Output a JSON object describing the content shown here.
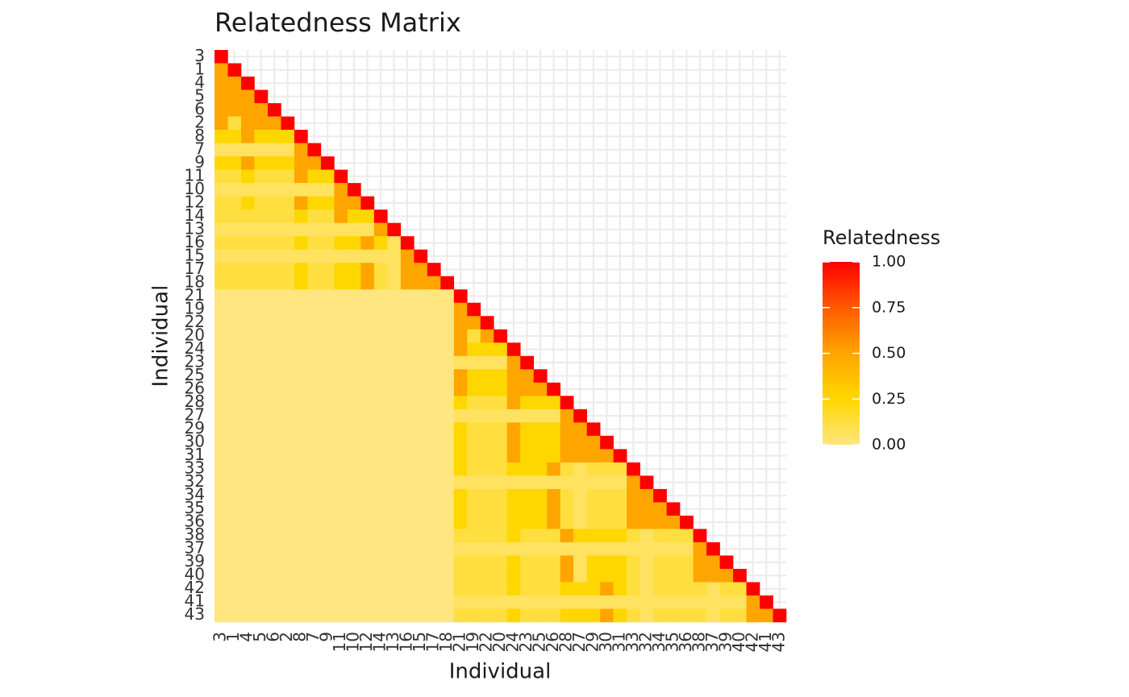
{
  "chart_data": {
    "type": "heatmap",
    "title": "Relatedness Matrix",
    "x_label": "Individual",
    "y_label": "Individual",
    "categories": [
      "3",
      "1",
      "4",
      "5",
      "6",
      "2",
      "8",
      "7",
      "9",
      "11",
      "10",
      "12",
      "14",
      "13",
      "16",
      "15",
      "17",
      "18",
      "21",
      "19",
      "22",
      "20",
      "24",
      "23",
      "25",
      "26",
      "28",
      "27",
      "29",
      "30",
      "31",
      "33",
      "32",
      "34",
      "35",
      "36",
      "38",
      "37",
      "39",
      "40",
      "42",
      "41",
      "43"
    ],
    "values": [
      [
        1
      ],
      [
        0.5,
        1
      ],
      [
        0.5,
        0.5,
        1
      ],
      [
        0.5,
        0.5,
        0.5,
        1
      ],
      [
        0.5,
        0.5,
        0.5,
        0.5,
        1
      ],
      [
        0.5,
        0.125,
        0.5,
        0.5,
        0.5,
        1
      ],
      [
        0.25,
        0.25,
        0.5,
        0.25,
        0.25,
        0.25,
        1
      ],
      [
        0.0625,
        0.0625,
        0.0625,
        0.0625,
        0.0625,
        0.0625,
        0.5,
        1
      ],
      [
        0.25,
        0.25,
        0.5,
        0.25,
        0.25,
        0.25,
        0.5,
        0.5,
        1
      ],
      [
        0.125,
        0.125,
        0.25,
        0.125,
        0.125,
        0.125,
        0.5,
        0.25,
        0.25,
        1
      ],
      [
        0.0625,
        0.0625,
        0.0625,
        0.0625,
        0.0625,
        0.0625,
        0.0625,
        0.0625,
        0.0625,
        0.5,
        1
      ],
      [
        0.125,
        0.125,
        0.25,
        0.125,
        0.125,
        0.125,
        0.5,
        0.25,
        0.25,
        0.5,
        0.5,
        1
      ],
      [
        0.125,
        0.125,
        0.125,
        0.125,
        0.125,
        0.125,
        0.25,
        0.125,
        0.125,
        0.5,
        0.25,
        0.25,
        1
      ],
      [
        0.0625,
        0.0625,
        0.0625,
        0.0625,
        0.0625,
        0.0625,
        0.0625,
        0.0625,
        0.0625,
        0.0625,
        0.0625,
        0.0625,
        0.5,
        1
      ],
      [
        0.125,
        0.125,
        0.125,
        0.125,
        0.125,
        0.125,
        0.25,
        0.125,
        0.125,
        0.25,
        0.25,
        0.5,
        0.25,
        0.0625,
        1
      ],
      [
        0.0625,
        0.0625,
        0.0625,
        0.0625,
        0.0625,
        0.0625,
        0.0625,
        0.0625,
        0.0625,
        0.0625,
        0.0625,
        0.0625,
        0.0625,
        0.0625,
        0.5,
        1
      ],
      [
        0.125,
        0.125,
        0.125,
        0.125,
        0.125,
        0.125,
        0.25,
        0.125,
        0.125,
        0.25,
        0.25,
        0.5,
        0.125,
        0.0625,
        0.5,
        0.5,
        1
      ],
      [
        0.125,
        0.125,
        0.125,
        0.125,
        0.125,
        0.125,
        0.25,
        0.125,
        0.125,
        0.25,
        0.25,
        0.5,
        0.125,
        0.0625,
        0.5,
        0.5,
        0.5,
        1
      ],
      [
        0,
        0,
        0,
        0,
        0,
        0,
        0,
        0,
        0,
        0,
        0,
        0,
        0,
        0,
        0,
        0,
        0,
        0,
        1
      ],
      [
        0,
        0,
        0,
        0,
        0,
        0,
        0,
        0,
        0,
        0,
        0,
        0,
        0,
        0,
        0,
        0,
        0,
        0,
        0.5,
        1
      ],
      [
        0,
        0,
        0,
        0,
        0,
        0,
        0,
        0,
        0,
        0,
        0,
        0,
        0,
        0,
        0,
        0,
        0,
        0,
        0.5,
        0.5,
        1
      ],
      [
        0,
        0,
        0,
        0,
        0,
        0,
        0,
        0,
        0,
        0,
        0,
        0,
        0,
        0,
        0,
        0,
        0,
        0,
        0.5,
        0.125,
        0.5,
        1
      ],
      [
        0,
        0,
        0,
        0,
        0,
        0,
        0,
        0,
        0,
        0,
        0,
        0,
        0,
        0,
        0,
        0,
        0,
        0,
        0.5,
        0.25,
        0.25,
        0.25,
        1
      ],
      [
        0,
        0,
        0,
        0,
        0,
        0,
        0,
        0,
        0,
        0,
        0,
        0,
        0,
        0,
        0,
        0,
        0,
        0,
        0.0625,
        0.0625,
        0.0625,
        0.0625,
        0.5,
        1
      ],
      [
        0,
        0,
        0,
        0,
        0,
        0,
        0,
        0,
        0,
        0,
        0,
        0,
        0,
        0,
        0,
        0,
        0,
        0,
        0.5,
        0.25,
        0.25,
        0.25,
        0.5,
        0.5,
        1
      ],
      [
        0,
        0,
        0,
        0,
        0,
        0,
        0,
        0,
        0,
        0,
        0,
        0,
        0,
        0,
        0,
        0,
        0,
        0,
        0.5,
        0.25,
        0.25,
        0.25,
        0.5,
        0.5,
        0.5,
        1
      ],
      [
        0,
        0,
        0,
        0,
        0,
        0,
        0,
        0,
        0,
        0,
        0,
        0,
        0,
        0,
        0,
        0,
        0,
        0,
        0.25,
        0.125,
        0.125,
        0.125,
        0.5,
        0.25,
        0.25,
        0.25,
        1
      ],
      [
        0,
        0,
        0,
        0,
        0,
        0,
        0,
        0,
        0,
        0,
        0,
        0,
        0,
        0,
        0,
        0,
        0,
        0,
        0.0625,
        0.0625,
        0.0625,
        0.0625,
        0.0625,
        0.0625,
        0.0625,
        0.0625,
        0.5,
        1
      ],
      [
        0,
        0,
        0,
        0,
        0,
        0,
        0,
        0,
        0,
        0,
        0,
        0,
        0,
        0,
        0,
        0,
        0,
        0,
        0.25,
        0.125,
        0.125,
        0.125,
        0.5,
        0.25,
        0.25,
        0.25,
        0.5,
        0.5,
        1
      ],
      [
        0,
        0,
        0,
        0,
        0,
        0,
        0,
        0,
        0,
        0,
        0,
        0,
        0,
        0,
        0,
        0,
        0,
        0,
        0.25,
        0.125,
        0.125,
        0.125,
        0.5,
        0.25,
        0.25,
        0.25,
        0.5,
        0.5,
        0.5,
        1
      ],
      [
        0,
        0,
        0,
        0,
        0,
        0,
        0,
        0,
        0,
        0,
        0,
        0,
        0,
        0,
        0,
        0,
        0,
        0,
        0.25,
        0.125,
        0.125,
        0.125,
        0.5,
        0.25,
        0.25,
        0.25,
        0.5,
        0.5,
        0.5,
        0.5,
        1
      ],
      [
        0,
        0,
        0,
        0,
        0,
        0,
        0,
        0,
        0,
        0,
        0,
        0,
        0,
        0,
        0,
        0,
        0,
        0,
        0.25,
        0.125,
        0.125,
        0.125,
        0.25,
        0.25,
        0.25,
        0.5,
        0.125,
        0.0625,
        0.125,
        0.125,
        0.125,
        1
      ],
      [
        0,
        0,
        0,
        0,
        0,
        0,
        0,
        0,
        0,
        0,
        0,
        0,
        0,
        0,
        0,
        0,
        0,
        0,
        0.0625,
        0.0625,
        0.0625,
        0.0625,
        0.0625,
        0.0625,
        0.0625,
        0.0625,
        0.0625,
        0.0625,
        0.0625,
        0.0625,
        0.0625,
        0.5,
        1
      ],
      [
        0,
        0,
        0,
        0,
        0,
        0,
        0,
        0,
        0,
        0,
        0,
        0,
        0,
        0,
        0,
        0,
        0,
        0,
        0.25,
        0.125,
        0.125,
        0.125,
        0.25,
        0.25,
        0.25,
        0.5,
        0.125,
        0.0625,
        0.125,
        0.125,
        0.125,
        0.5,
        0.5,
        1
      ],
      [
        0,
        0,
        0,
        0,
        0,
        0,
        0,
        0,
        0,
        0,
        0,
        0,
        0,
        0,
        0,
        0,
        0,
        0,
        0.25,
        0.125,
        0.125,
        0.125,
        0.25,
        0.25,
        0.25,
        0.5,
        0.125,
        0.0625,
        0.125,
        0.125,
        0.125,
        0.5,
        0.5,
        0.5,
        1
      ],
      [
        0,
        0,
        0,
        0,
        0,
        0,
        0,
        0,
        0,
        0,
        0,
        0,
        0,
        0,
        0,
        0,
        0,
        0,
        0.25,
        0.125,
        0.125,
        0.125,
        0.25,
        0.25,
        0.25,
        0.5,
        0.125,
        0.0625,
        0.125,
        0.125,
        0.125,
        0.5,
        0.5,
        0.5,
        0.5,
        1
      ],
      [
        0,
        0,
        0,
        0,
        0,
        0,
        0,
        0,
        0,
        0,
        0,
        0,
        0,
        0,
        0,
        0,
        0,
        0,
        0.125,
        0.125,
        0.125,
        0.125,
        0.25,
        0.125,
        0.125,
        0.125,
        0.5,
        0.25,
        0.25,
        0.25,
        0.25,
        0.125,
        0.0625,
        0.125,
        0.125,
        0.125,
        1
      ],
      [
        0,
        0,
        0,
        0,
        0,
        0,
        0,
        0,
        0,
        0,
        0,
        0,
        0,
        0,
        0,
        0,
        0,
        0,
        0.0625,
        0.0625,
        0.0625,
        0.0625,
        0.0625,
        0.0625,
        0.0625,
        0.0625,
        0.0625,
        0.0625,
        0.0625,
        0.0625,
        0.0625,
        0.0625,
        0.0625,
        0.0625,
        0.0625,
        0.0625,
        0.5,
        1
      ],
      [
        0,
        0,
        0,
        0,
        0,
        0,
        0,
        0,
        0,
        0,
        0,
        0,
        0,
        0,
        0,
        0,
        0,
        0,
        0.125,
        0.125,
        0.125,
        0.125,
        0.25,
        0.125,
        0.125,
        0.125,
        0.5,
        0.0625,
        0.25,
        0.25,
        0.25,
        0.125,
        0.0625,
        0.125,
        0.125,
        0.125,
        0.5,
        0.5,
        1
      ],
      [
        0,
        0,
        0,
        0,
        0,
        0,
        0,
        0,
        0,
        0,
        0,
        0,
        0,
        0,
        0,
        0,
        0,
        0,
        0.125,
        0.125,
        0.125,
        0.125,
        0.25,
        0.125,
        0.125,
        0.125,
        0.5,
        0.0625,
        0.25,
        0.25,
        0.25,
        0.125,
        0.0625,
        0.125,
        0.125,
        0.125,
        0.5,
        0.5,
        0.5,
        1
      ],
      [
        0,
        0,
        0,
        0,
        0,
        0,
        0,
        0,
        0,
        0,
        0,
        0,
        0,
        0,
        0,
        0,
        0,
        0,
        0.125,
        0.125,
        0.125,
        0.125,
        0.25,
        0.125,
        0.125,
        0.125,
        0.25,
        0.25,
        0.25,
        0.5,
        0.25,
        0.125,
        0.0625,
        0.125,
        0.125,
        0.125,
        0.125,
        0.0625,
        0.125,
        0.125,
        1
      ],
      [
        0,
        0,
        0,
        0,
        0,
        0,
        0,
        0,
        0,
        0,
        0,
        0,
        0,
        0,
        0,
        0,
        0,
        0,
        0.0625,
        0.0625,
        0.0625,
        0.0625,
        0.0625,
        0.0625,
        0.0625,
        0.0625,
        0.0625,
        0.0625,
        0.0625,
        0.0625,
        0.0625,
        0.0625,
        0.0625,
        0.0625,
        0.0625,
        0.0625,
        0.0625,
        0.0625,
        0.0625,
        0.0625,
        0.5,
        1
      ],
      [
        0,
        0,
        0,
        0,
        0,
        0,
        0,
        0,
        0,
        0,
        0,
        0,
        0,
        0,
        0,
        0,
        0,
        0,
        0.125,
        0.125,
        0.125,
        0.125,
        0.25,
        0.125,
        0.125,
        0.125,
        0.25,
        0.25,
        0.25,
        0.5,
        0.25,
        0.125,
        0.0625,
        0.125,
        0.125,
        0.125,
        0.125,
        0.0625,
        0.125,
        0.125,
        0.5,
        0.5,
        1
      ]
    ],
    "legend_title": "Relatedness",
    "color_scale": [
      "#FFE680",
      "#FFD700",
      "#FFA500",
      "#FF5A00",
      "#FF0000"
    ],
    "clim": [
      0,
      1
    ],
    "cticks": [
      {
        "value": 0,
        "label": "0.00"
      },
      {
        "value": 0.25,
        "label": "0.25"
      },
      {
        "value": 0.5,
        "label": "0.50"
      },
      {
        "value": 0.75,
        "label": "0.75"
      },
      {
        "value": 1,
        "label": "1.00"
      }
    ],
    "grid": true
  }
}
